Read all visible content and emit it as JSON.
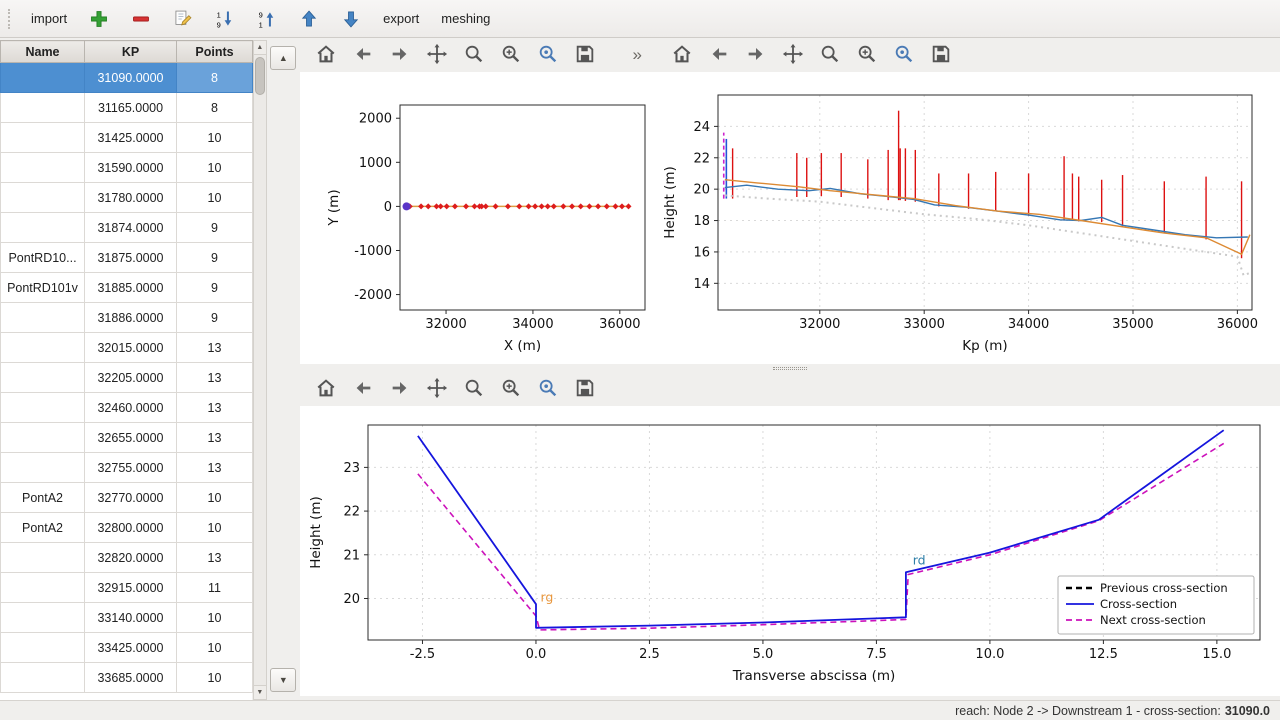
{
  "glyphs": {
    "up": "▲",
    "down": "▼",
    "overflow": "»"
  },
  "main_toolbar": {
    "items": [
      {
        "name": "import-button",
        "label": "import"
      },
      {
        "name": "add-cross-section-button",
        "icon": "plus"
      },
      {
        "name": "remove-cross-section-button",
        "icon": "minus"
      },
      {
        "name": "edit-cross-section-button",
        "icon": "edit"
      },
      {
        "name": "sort-ascending-button",
        "icon": "sort-asc"
      },
      {
        "name": "sort-descending-button",
        "icon": "sort-desc"
      },
      {
        "name": "move-up-button",
        "icon": "arrow-up"
      },
      {
        "name": "move-down-button",
        "icon": "arrow-down"
      },
      {
        "name": "export-button",
        "label": "export"
      },
      {
        "name": "meshing-button",
        "label": "meshing"
      }
    ]
  },
  "plot_toolbar": {
    "buttons": [
      {
        "icon": "home",
        "name": "home-button"
      },
      {
        "icon": "back",
        "name": "back-button"
      },
      {
        "icon": "forward",
        "name": "forward-button"
      },
      {
        "icon": "pan",
        "name": "pan-button"
      },
      {
        "icon": "zoom",
        "name": "zoom-button"
      },
      {
        "icon": "subplots",
        "name": "subplots-button"
      },
      {
        "icon": "customize",
        "name": "customize-button"
      },
      {
        "icon": "save",
        "name": "save-figure-button"
      }
    ]
  },
  "table": {
    "columns": [
      "Name",
      "KP",
      "Points"
    ],
    "selected_index": 0,
    "rows": [
      {
        "name": "",
        "kp": "31090.0000",
        "points": "8"
      },
      {
        "name": "",
        "kp": "31165.0000",
        "points": "8"
      },
      {
        "name": "",
        "kp": "31425.0000",
        "points": "10"
      },
      {
        "name": "",
        "kp": "31590.0000",
        "points": "10"
      },
      {
        "name": "",
        "kp": "31780.0000",
        "points": "10"
      },
      {
        "name": "",
        "kp": "31874.0000",
        "points": "9"
      },
      {
        "name": "PontRD10...",
        "kp": "31875.0000",
        "points": "9"
      },
      {
        "name": "PontRD101v",
        "kp": "31885.0000",
        "points": "9"
      },
      {
        "name": "",
        "kp": "31886.0000",
        "points": "9"
      },
      {
        "name": "",
        "kp": "32015.0000",
        "points": "13"
      },
      {
        "name": "",
        "kp": "32205.0000",
        "points": "13"
      },
      {
        "name": "",
        "kp": "32460.0000",
        "points": "13"
      },
      {
        "name": "",
        "kp": "32655.0000",
        "points": "13"
      },
      {
        "name": "",
        "kp": "32755.0000",
        "points": "13"
      },
      {
        "name": "PontA2",
        "kp": "32770.0000",
        "points": "10"
      },
      {
        "name": "PontA2",
        "kp": "32800.0000",
        "points": "10"
      },
      {
        "name": "",
        "kp": "32820.0000",
        "points": "13"
      },
      {
        "name": "",
        "kp": "32915.0000",
        "points": "11"
      },
      {
        "name": "",
        "kp": "33140.0000",
        "points": "10"
      },
      {
        "name": "",
        "kp": "33425.0000",
        "points": "10"
      },
      {
        "name": "",
        "kp": "33685.0000",
        "points": "10"
      }
    ]
  },
  "status": {
    "text": "reach: Node 2 -> Downstream 1 - cross-section: ",
    "value": "31090.0"
  },
  "chart_data": [
    {
      "id": "plan",
      "type": "scatter",
      "title": "",
      "xlabel": "X (m)",
      "ylabel": "Y (m)",
      "xlim": [
        30940,
        36580
      ],
      "ylim": [
        -2350,
        2300
      ],
      "xticks": [
        32000,
        34000,
        36000
      ],
      "xtick_labels": [
        "32000",
        "34000",
        "36000"
      ],
      "yticks": [
        -2000,
        -1000,
        0,
        1000,
        2000
      ],
      "ytick_labels": [
        "-2000",
        "-1000",
        "0",
        "1000",
        "2000"
      ],
      "grid": false,
      "series": [
        {
          "name": "river-axis",
          "type": "line",
          "color": "#de9c40",
          "width": 1.5,
          "x": [
            31090,
            36200
          ],
          "y": [
            0,
            0
          ]
        },
        {
          "name": "cross-section-markers",
          "type": "scatter",
          "marker": "diamond",
          "color": "#dd1c1c",
          "size": 3,
          "x": [
            31090,
            31165,
            31425,
            31590,
            31780,
            31875,
            32015,
            32205,
            32460,
            32655,
            32770,
            32820,
            32915,
            33140,
            33425,
            33685,
            33900,
            34050,
            34200,
            34340,
            34480,
            34700,
            34900,
            35100,
            35300,
            35500,
            35700,
            35900,
            36050,
            36200
          ],
          "y": [
            0,
            0,
            0,
            0,
            0,
            0,
            0,
            0,
            0,
            0,
            0,
            0,
            0,
            0,
            0,
            0,
            0,
            0,
            0,
            0,
            0,
            0,
            0,
            0,
            0,
            0,
            0,
            0,
            0,
            0
          ]
        },
        {
          "name": "selected-cross-section-marker",
          "type": "scatter",
          "marker": "circle",
          "color": "#5a35c8",
          "size": 4,
          "x": [
            31090
          ],
          "y": [
            0
          ]
        }
      ]
    },
    {
      "id": "profile",
      "type": "line",
      "title": "",
      "xlabel": "Kp (m)",
      "ylabel": "Height (m)",
      "xlim": [
        31025,
        36140
      ],
      "ylim": [
        12.3,
        26.0
      ],
      "xticks": [
        32000,
        33000,
        34000,
        35000,
        36000
      ],
      "xtick_labels": [
        "32000",
        "33000",
        "34000",
        "35000",
        "36000"
      ],
      "yticks": [
        14,
        16,
        18,
        20,
        22,
        24
      ],
      "ytick_labels": [
        "14",
        "16",
        "18",
        "20",
        "22",
        "24"
      ],
      "grid": true,
      "series": [
        {
          "name": "cross-section-extents",
          "type": "vlines",
          "color": "#dd1111",
          "width": 1.4,
          "lines": [
            [
              31165,
              19.4,
              22.6
            ],
            [
              31780,
              19.5,
              22.3
            ],
            [
              31875,
              19.5,
              22.0
            ],
            [
              32015,
              19.55,
              22.3
            ],
            [
              32205,
              19.5,
              22.3
            ],
            [
              32460,
              19.4,
              21.9
            ],
            [
              32655,
              19.3,
              22.5
            ],
            [
              32755,
              19.3,
              25.0
            ],
            [
              32770,
              19.3,
              22.6
            ],
            [
              32820,
              19.25,
              22.6
            ],
            [
              32915,
              19.2,
              22.5
            ],
            [
              33140,
              18.9,
              21.0
            ],
            [
              33425,
              18.75,
              21.0
            ],
            [
              33685,
              18.6,
              21.1
            ],
            [
              34000,
              18.3,
              21.0
            ],
            [
              34340,
              18.0,
              22.1
            ],
            [
              34420,
              18.0,
              21.0
            ],
            [
              34480,
              17.95,
              20.8
            ],
            [
              34700,
              17.9,
              20.6
            ],
            [
              34900,
              17.6,
              20.9
            ],
            [
              35300,
              17.2,
              20.5
            ],
            [
              35700,
              16.8,
              20.8
            ],
            [
              36040,
              15.6,
              20.5
            ]
          ]
        },
        {
          "name": "selected-cross-section-marker-line",
          "type": "vlines",
          "color": "#cc22cc",
          "dash": "4,3",
          "width": 1.6,
          "lines": [
            [
              31080,
              19.4,
              23.6
            ]
          ]
        },
        {
          "name": "selected-cross-section-blue-line",
          "type": "vlines",
          "color": "#2255d8",
          "width": 1.6,
          "lines": [
            [
              31105,
              19.4,
              23.2
            ]
          ]
        },
        {
          "name": "thalweg-dotted",
          "type": "line",
          "color": "#c9c9c9",
          "dash": "2,4",
          "width": 2,
          "x": [
            31090,
            31500,
            32000,
            32500,
            33000,
            33500,
            34000,
            34400,
            34800,
            35200,
            35600,
            36000,
            36060,
            36130
          ],
          "y": [
            19.6,
            19.4,
            19.2,
            18.8,
            18.4,
            18.1,
            17.7,
            17.3,
            16.9,
            16.5,
            16.1,
            15.7,
            14.5,
            14.7
          ]
        },
        {
          "name": "water-profile",
          "type": "line",
          "color": "#3577b4",
          "width": 1.4,
          "x": [
            31090,
            31300,
            31600,
            31900,
            32100,
            32400,
            32700,
            32900,
            33100,
            33400,
            33700,
            34000,
            34300,
            34500,
            34700,
            34900,
            35200,
            35500,
            35800,
            36100
          ],
          "y": [
            20.1,
            20.25,
            20.0,
            19.9,
            20.05,
            19.7,
            19.5,
            19.35,
            19.0,
            18.85,
            18.6,
            18.35,
            18.05,
            18.0,
            18.2,
            17.7,
            17.4,
            17.1,
            16.9,
            16.95
          ]
        },
        {
          "name": "bank-profile",
          "type": "line",
          "color": "#dd8a33",
          "width": 1.4,
          "x": [
            31090,
            31400,
            31800,
            32100,
            32500,
            32900,
            33300,
            33700,
            34100,
            34500,
            34900,
            35300,
            35700,
            36040,
            36120
          ],
          "y": [
            20.6,
            20.4,
            20.15,
            19.9,
            19.65,
            19.4,
            18.95,
            18.6,
            18.4,
            18.0,
            17.6,
            17.2,
            16.9,
            15.85,
            17.1
          ]
        }
      ]
    },
    {
      "id": "cross_section",
      "type": "line",
      "title": "",
      "xlabel": "Transverse abscissa (m)",
      "ylabel": "Height (m)",
      "xlim": [
        -3.7,
        15.95
      ],
      "ylim": [
        19.05,
        23.97
      ],
      "xticks": [
        -2.5,
        0,
        2.5,
        5,
        7.5,
        10,
        12.5,
        15
      ],
      "xtick_labels": [
        "-2.5",
        "0.0",
        "2.5",
        "5.0",
        "7.5",
        "10.0",
        "12.5",
        "15.0"
      ],
      "yticks": [
        20,
        21,
        22,
        23
      ],
      "ytick_labels": [
        "20",
        "21",
        "22",
        "23"
      ],
      "grid": true,
      "legend": {
        "position": "bottom-right",
        "entries": [
          {
            "label": "Previous cross-section",
            "color": "#000000",
            "dash": "6,4",
            "width": 2.4
          },
          {
            "label": "Cross-section",
            "color": "#1515dd",
            "dash": "",
            "width": 1.8
          },
          {
            "label": "Next cross-section",
            "color": "#cc11bb",
            "dash": "6,4",
            "width": 1.8
          }
        ]
      },
      "annotations": [
        {
          "text": "rg",
          "x": 0.1,
          "y": 19.93,
          "color": "#e8963c"
        },
        {
          "text": "rd",
          "x": 8.3,
          "y": 20.78,
          "color": "#2e7fa8"
        }
      ],
      "series": [
        {
          "name": "next-cross-section",
          "type": "line",
          "color": "#cc11bb",
          "dash": "6,4",
          "width": 1.6,
          "x": [
            -2.6,
            0.0,
            0.08,
            2.5,
            5.0,
            8.15,
            8.2,
            10.0,
            12.4,
            15.15
          ],
          "y": [
            22.85,
            19.6,
            19.28,
            19.32,
            19.4,
            19.52,
            20.55,
            21.0,
            21.78,
            23.55
          ]
        },
        {
          "name": "cross-section",
          "type": "line",
          "color": "#1515dd",
          "width": 1.8,
          "x": [
            -2.6,
            0.0,
            0.0,
            2.5,
            5.0,
            8.15,
            8.15,
            10.0,
            12.4,
            15.15
          ],
          "y": [
            23.72,
            19.87,
            19.33,
            19.38,
            19.45,
            19.57,
            20.6,
            21.05,
            21.8,
            23.85
          ]
        }
      ]
    }
  ]
}
